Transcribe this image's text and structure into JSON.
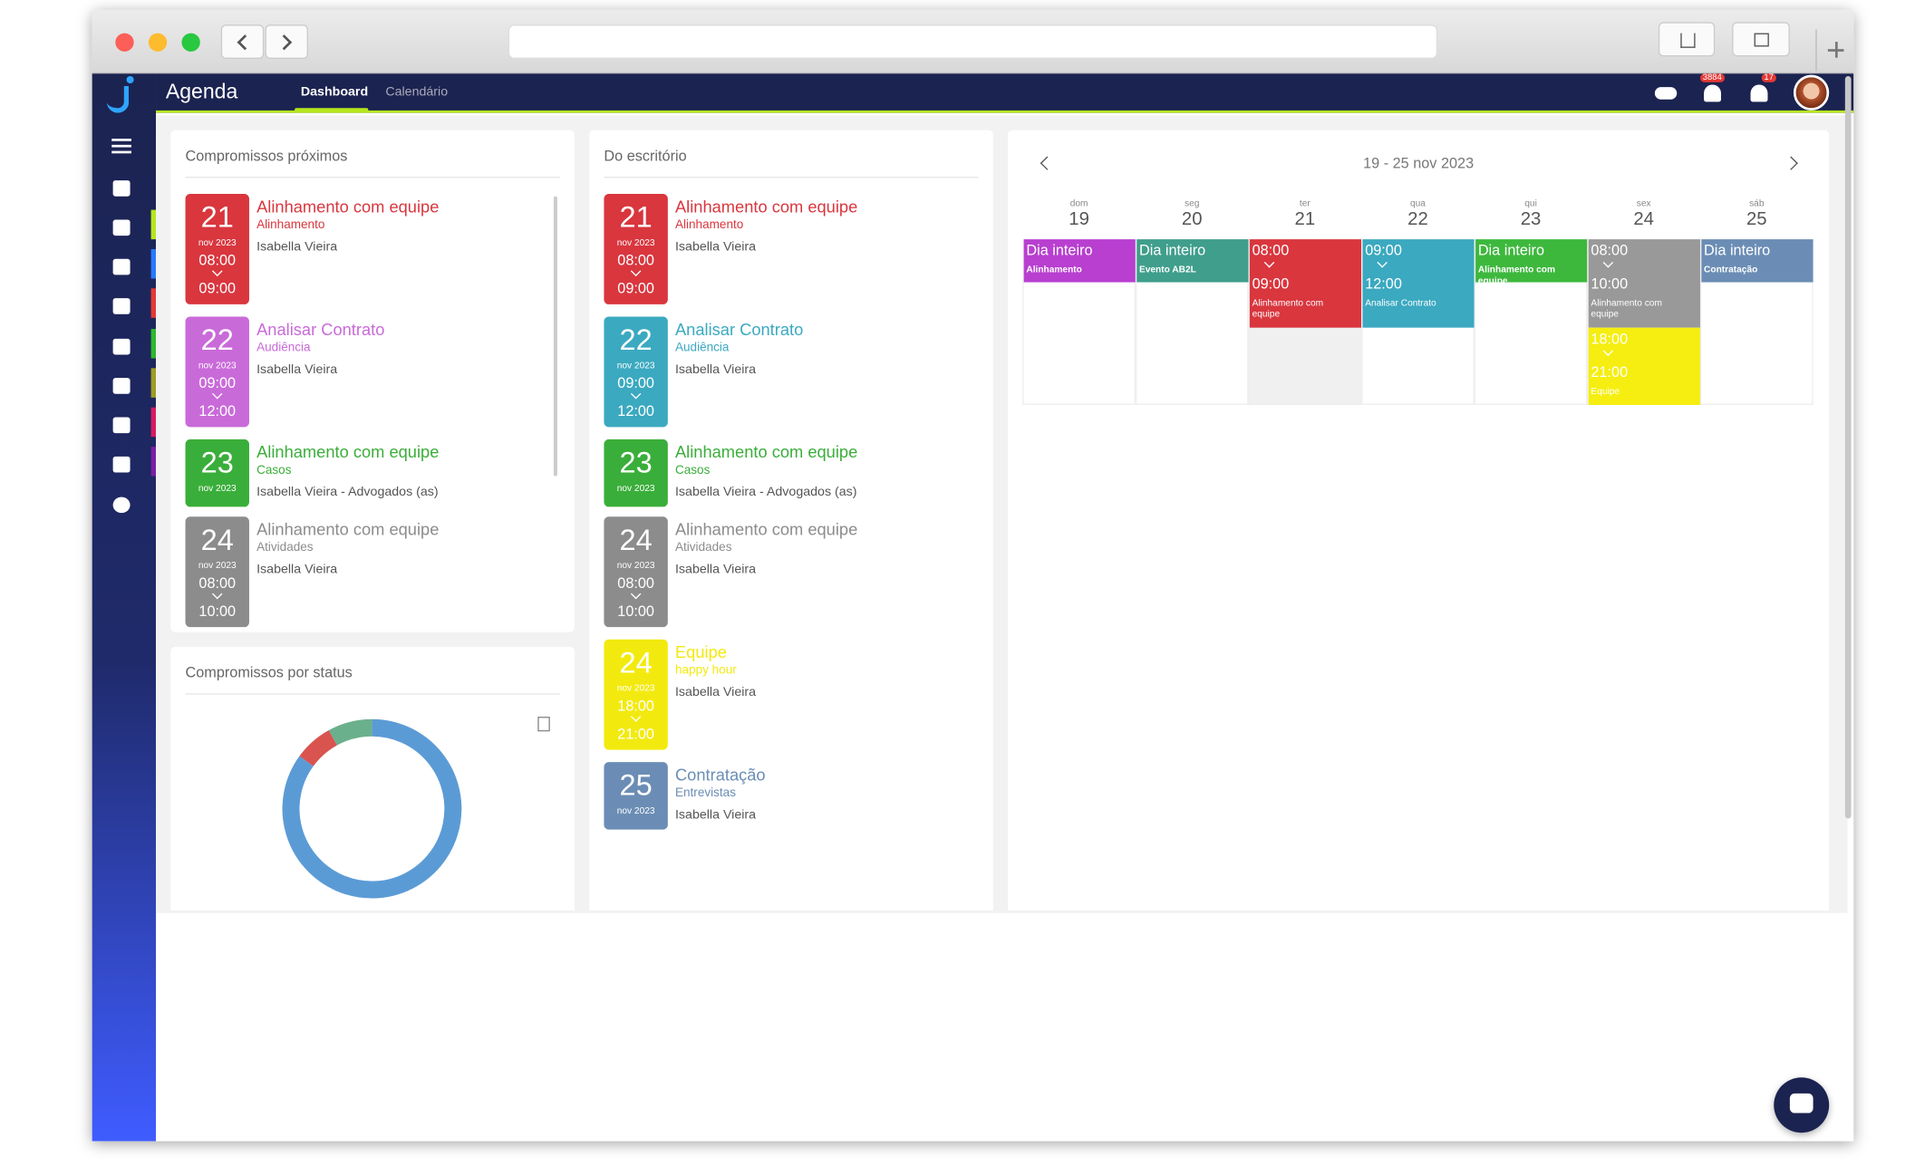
{
  "app": {
    "title": "Agenda",
    "tabs": [
      "Dashboard",
      "Calendário"
    ],
    "notifications": "3884",
    "alerts": "17"
  },
  "upcoming": {
    "title": "Compromissos próximos",
    "items": [
      {
        "day": "21",
        "month": "nov 2023",
        "start": "08:00",
        "end": "09:00",
        "title": "Alinhamento com equipe",
        "category": "Alinhamento",
        "people": "Isabella Vieira",
        "color": "#d9363e"
      },
      {
        "day": "22",
        "month": "nov 2023",
        "start": "09:00",
        "end": "12:00",
        "title": "Analisar Contrato",
        "category": "Audiência",
        "people": "Isabella Vieira",
        "color": "#c96ad9"
      },
      {
        "day": "23",
        "month": "nov 2023",
        "title": "Alinhamento com equipe",
        "category": "Casos",
        "people": "Isabella Vieira - Advogados (as)",
        "color": "#3aae3a"
      },
      {
        "day": "24",
        "month": "nov 2023",
        "start": "08:00",
        "end": "10:00",
        "title": "Alinhamento com equipe",
        "category": "Atividades",
        "people": "Isabella Vieira",
        "color": "#8c8c8c"
      }
    ]
  },
  "status_chart": {
    "type": "donut",
    "title": "Compromissos por status",
    "values": [
      85,
      7,
      8
    ],
    "colors": [
      "#5b9bd5",
      "#d9534f",
      "#6bb08c"
    ]
  },
  "office": {
    "title": "Do escritório",
    "items": [
      {
        "day": "21",
        "month": "nov 2023",
        "start": "08:00",
        "end": "09:00",
        "title": "Alinhamento com equipe",
        "category": "Alinhamento",
        "people": "Isabella Vieira",
        "color": "#d9363e"
      },
      {
        "day": "22",
        "month": "nov 2023",
        "start": "09:00",
        "end": "12:00",
        "title": "Analisar Contrato",
        "category": "Audiência",
        "people": "Isabella Vieira",
        "color": "#3ba9c0"
      },
      {
        "day": "23",
        "month": "nov 2023",
        "title": "Alinhamento com equipe",
        "category": "Casos",
        "people": "Isabella Vieira - Advogados (as)",
        "color": "#3aae3a"
      },
      {
        "day": "24",
        "month": "nov 2023",
        "start": "08:00",
        "end": "10:00",
        "title": "Alinhamento com equipe",
        "category": "Atividades",
        "people": "Isabella Vieira",
        "color": "#8c8c8c"
      },
      {
        "day": "24",
        "month": "nov 2023",
        "start": "18:00",
        "end": "21:00",
        "title": "Equipe",
        "category": "happy hour",
        "people": "Isabella Vieira",
        "color": "#f2ea0f"
      },
      {
        "day": "25",
        "month": "nov 2023",
        "title": "Contratação",
        "category": "Entrevistas",
        "people": "Isabella Vieira",
        "color": "#6b8db5"
      }
    ]
  },
  "calendar": {
    "range": "19 - 25 nov 2023",
    "days": [
      {
        "weekday": "dom",
        "day": "19",
        "events": [
          {
            "label": "Dia inteiro",
            "title": "Alinhamento",
            "color": "#b83fd0"
          }
        ]
      },
      {
        "weekday": "seg",
        "day": "20",
        "events": [
          {
            "label": "Dia inteiro",
            "title": "Evento AB2L",
            "color": "#3f9e8c"
          }
        ]
      },
      {
        "weekday": "ter",
        "day": "21",
        "events": [
          {
            "start": "08:00",
            "end": "09:00",
            "title": "Alinhamento com equipe",
            "color": "#d9363e"
          }
        ]
      },
      {
        "weekday": "qua",
        "day": "22",
        "events": [
          {
            "start": "09:00",
            "end": "12:00",
            "title": "Analisar Contrato",
            "color": "#3ba9c0"
          }
        ]
      },
      {
        "weekday": "qui",
        "day": "23",
        "events": [
          {
            "label": "Dia inteiro",
            "title": "Alinhamento com equipe",
            "color": "#3db83d"
          }
        ]
      },
      {
        "weekday": "sex",
        "day": "24",
        "events": [
          {
            "start": "08:00",
            "end": "10:00",
            "title": "Alinhamento com equipe",
            "color": "#999999"
          },
          {
            "start": "18:00",
            "end": "21:00",
            "title": "Equipe",
            "color": "#f5ee10"
          }
        ]
      },
      {
        "weekday": "sáb",
        "day": "25",
        "events": [
          {
            "label": "Dia inteiro",
            "title": "Contratação",
            "color": "#6b8db5"
          }
        ]
      }
    ]
  }
}
